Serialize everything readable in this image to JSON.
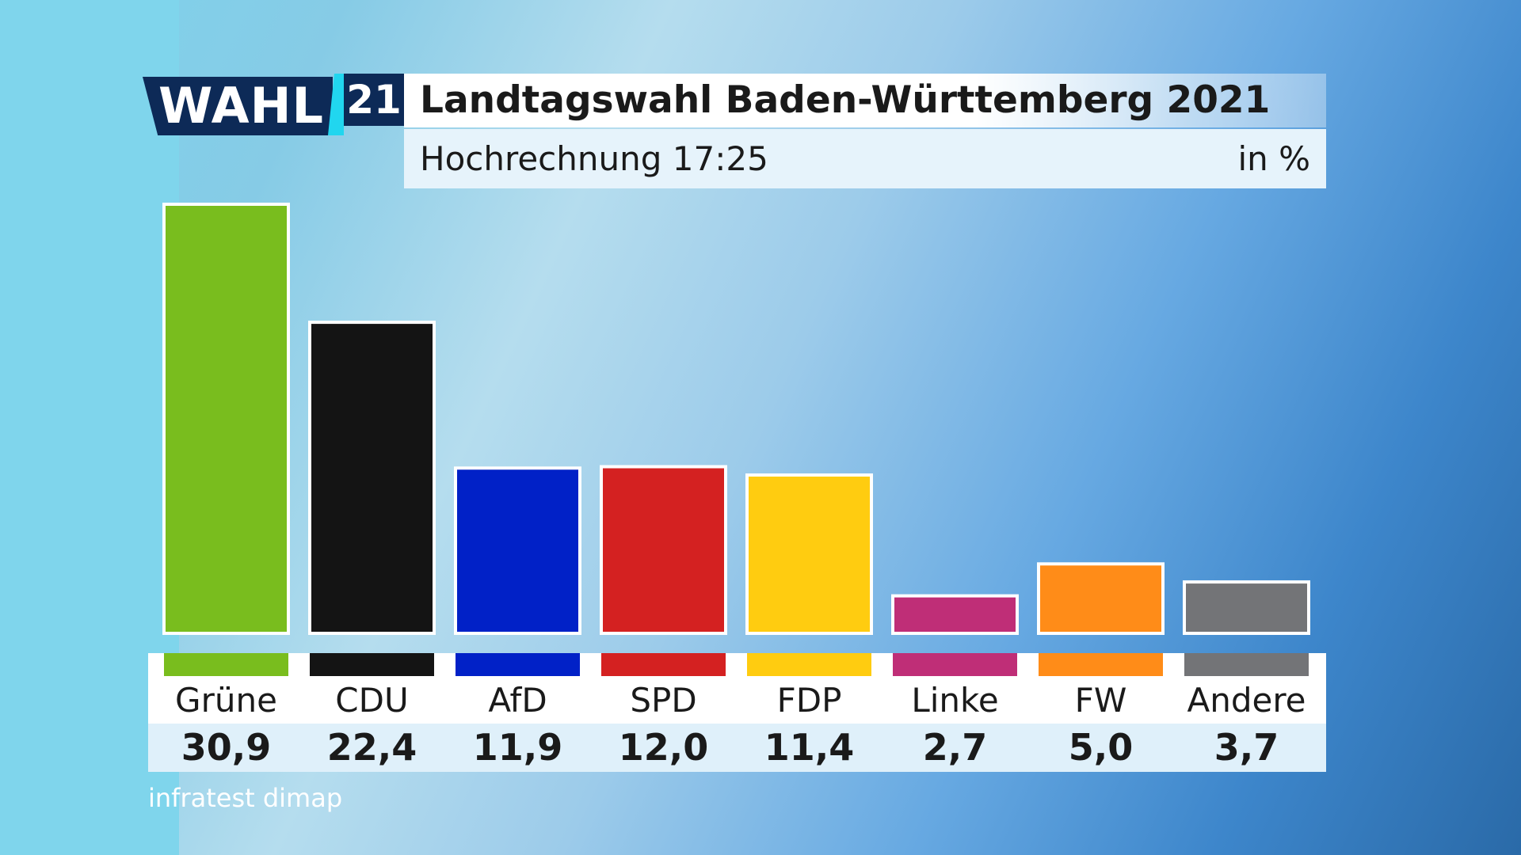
{
  "logo": {
    "word": "WAHL",
    "number": "21"
  },
  "header": {
    "title": "Landtagswahl Baden-Württemberg 2021",
    "subtitle": "Hochrechnung 17:25",
    "unit": "in %"
  },
  "source": "infratest dimap",
  "colors": {
    "logo_navy": "#0d2a57",
    "logo_cyan": "#21d6ef",
    "bar_border": "#ffffff"
  },
  "chart_data": {
    "type": "bar",
    "title": "Landtagswahl Baden-Württemberg 2021",
    "subtitle": "Hochrechnung 17:25",
    "ylabel": "in %",
    "categories": [
      "Grüne",
      "CDU",
      "AfD",
      "SPD",
      "FDP",
      "Linke",
      "FW",
      "Andere"
    ],
    "values": [
      30.9,
      22.4,
      11.9,
      12.0,
      11.4,
      2.7,
      5.0,
      3.7
    ],
    "value_labels": [
      "30,9",
      "22,4",
      "11,9",
      "12,0",
      "11,4",
      "2,7",
      "5,0",
      "3,7"
    ],
    "colors": [
      "#79bd1e",
      "#141414",
      "#0121c7",
      "#d42121",
      "#ffcc10",
      "#bf2e77",
      "#ff8c18",
      "#737477"
    ],
    "ylim": [
      0,
      30.9
    ],
    "grid": false,
    "legend": "none"
  }
}
